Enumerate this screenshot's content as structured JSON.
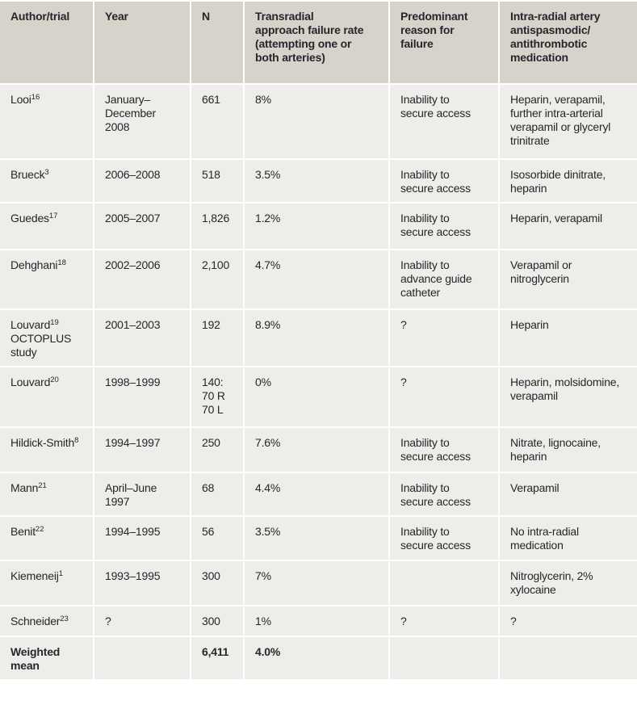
{
  "colors": {
    "header_bg": "#d6d3cb",
    "row_bg": "#eeedea",
    "text": "#26262b",
    "separator": "#ffffff"
  },
  "table": {
    "columns": {
      "author": "Author/trial",
      "year": "Year",
      "n": "N",
      "rate": "Transradial\napproach failure rate\n(attempting one or\nboth arteries)",
      "reason": "Predominant\nreason for\nfailure",
      "medication": "Intra-radial artery\nantispasmodic/\nantithrombotic\nmedication"
    },
    "rows": [
      {
        "author": "Looi",
        "ref": "16",
        "year": "January–\nDecember\n2008",
        "n": "661",
        "rate": "8%",
        "reason": "Inability to\nsecure access",
        "medication": "Heparin, verapamil,\nfurther intra-arterial\nverapamil or glyceryl\ntrinitrate"
      },
      {
        "author": "Brueck",
        "ref": "3",
        "year": "2006–2008",
        "n": "518",
        "rate": "3.5%",
        "reason": "Inability to\nsecure access",
        "medication": "Isosorbide dinitrate,\nheparin"
      },
      {
        "author": "Guedes",
        "ref": "17",
        "year": "2005–2007",
        "n": "1,826",
        "rate": "1.2%",
        "reason": "Inability to\nsecure access",
        "medication": "Heparin, verapamil"
      },
      {
        "author": "Dehghani",
        "ref": "18",
        "year": "2002–2006",
        "n": "2,100",
        "rate": "4.7%",
        "reason": "Inability to\nadvance guide\ncatheter",
        "medication": "Verapamil or\nnitroglycerin"
      },
      {
        "author": "Louvard",
        "ref": "19",
        "author_extra": "OCTOPLUS\nstudy",
        "year": "2001–2003",
        "n": "192",
        "rate": "8.9%",
        "reason": "?",
        "medication": "Heparin"
      },
      {
        "author": "Louvard",
        "ref": "20",
        "year": "1998–1999",
        "n": "140:\n70 R\n70 L",
        "rate": "0%",
        "reason": "?",
        "medication": "Heparin, molsidomine,\nverapamil"
      },
      {
        "author": "Hildick-Smith",
        "ref": "8",
        "year": "1994–1997",
        "n": "250",
        "rate": "7.6%",
        "reason": "Inability to\nsecure access",
        "medication": "Nitrate, lignocaine,\nheparin"
      },
      {
        "author": "Mann",
        "ref": "21",
        "year": "April–June\n1997",
        "n": "68",
        "rate": "4.4%",
        "reason": "Inability to\nsecure access",
        "medication": "Verapamil"
      },
      {
        "author": "Benit",
        "ref": "22",
        "year": "1994–1995",
        "n": "56",
        "rate": "3.5%",
        "reason": "Inability to\nsecure access",
        "medication": "No intra-radial\nmedication"
      },
      {
        "author": "Kiemeneij",
        "ref": "1",
        "year": "1993–1995",
        "n": "300",
        "rate": "7%",
        "reason": "",
        "medication": "Nitroglycerin, 2%\nxylocaine"
      },
      {
        "author": "Schneider",
        "ref": "23",
        "year": "?",
        "n": "300",
        "rate": "1%",
        "reason": "?",
        "medication": "?"
      },
      {
        "author": "Weighted\nmean",
        "bold": true,
        "year": "",
        "n": "6,411",
        "rate": "4.0%",
        "reason": "",
        "medication": ""
      }
    ]
  }
}
